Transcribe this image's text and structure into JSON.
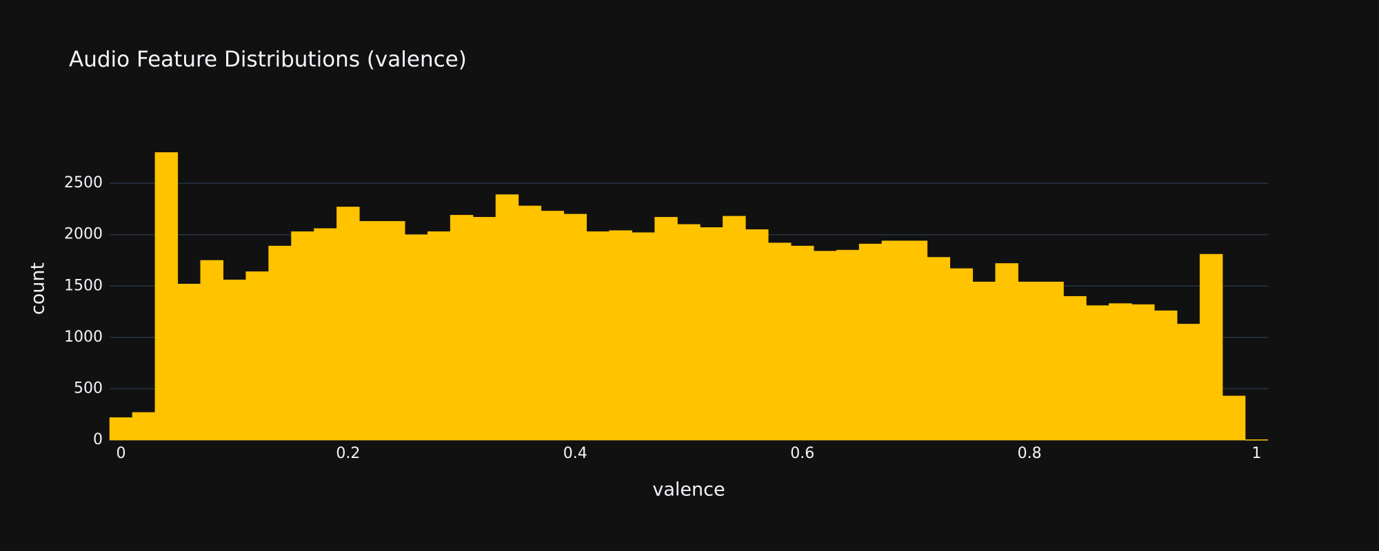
{
  "chart_data": {
    "type": "histogram",
    "title": "Audio Feature Distributions (valence)",
    "x_label": "valence",
    "y_label": "count",
    "color": "#ffc300",
    "grid": true,
    "bins": [
      -0.01,
      0.01,
      0.03,
      0.05,
      0.07,
      0.09,
      0.11,
      0.13,
      0.15,
      0.17,
      0.19,
      0.21,
      0.23,
      0.25,
      0.27,
      0.29,
      0.31,
      0.33,
      0.35,
      0.37,
      0.39,
      0.41,
      0.43,
      0.45,
      0.47,
      0.49,
      0.51,
      0.53,
      0.55,
      0.57,
      0.59,
      0.61,
      0.63,
      0.65,
      0.67,
      0.69,
      0.71,
      0.73,
      0.75,
      0.77,
      0.79,
      0.81,
      0.83,
      0.85,
      0.87,
      0.89,
      0.91,
      0.93,
      0.95,
      0.97,
      0.99,
      1.01
    ],
    "values": [
      220,
      270,
      2800,
      1520,
      1750,
      1560,
      1640,
      1890,
      2030,
      2060,
      2270,
      2130,
      2130,
      2000,
      2030,
      2190,
      2170,
      2390,
      2280,
      2230,
      2200,
      2030,
      2040,
      2020,
      2170,
      2100,
      2070,
      2180,
      2050,
      1920,
      1890,
      1840,
      1850,
      1910,
      1940,
      1940,
      1780,
      1670,
      1540,
      1720,
      1540,
      1540,
      1400,
      1310,
      1330,
      1320,
      1260,
      1130,
      1810,
      430,
      5
    ],
    "xlim": [
      -0.01,
      1.01
    ],
    "xticks": [
      0,
      0.2,
      0.4,
      0.6,
      0.8,
      1
    ],
    "ylim": [
      0,
      2950
    ],
    "yticks": [
      0,
      500,
      1000,
      1500,
      2000,
      2500
    ]
  }
}
